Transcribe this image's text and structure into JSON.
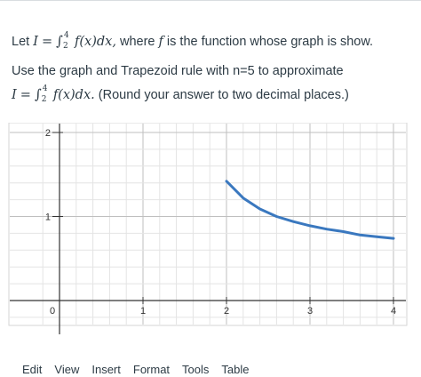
{
  "question": {
    "line1_prefix": "Let",
    "line1_var": "I",
    "line1_eq": "=",
    "integral_sign": "∫",
    "upper_limit": "4",
    "lower_limit": "2",
    "integrand": "f(x)dx,",
    "line1_text": "where",
    "line1_f": "f",
    "line1_suffix": "is the function whose graph is show.",
    "line2": "Use the graph and Trapezoid rule with n=5 to approximate",
    "line3_var": "I",
    "line3_eq": "=",
    "line3_integrand": "f(x)dx.",
    "line3_suffix": "(Round your answer to two decimal places.)"
  },
  "chart_data": {
    "type": "line",
    "x_ticks": [
      "0",
      "1",
      "2",
      "3",
      "4"
    ],
    "y_ticks": [
      "1",
      "2"
    ],
    "xlim": [
      -0.1,
      4.15
    ],
    "ylim": [
      -0.05,
      2.2
    ],
    "grid": true,
    "series": [
      {
        "x": [
          2.0,
          2.2,
          2.4,
          2.6,
          2.8,
          3.0,
          3.2,
          3.4,
          3.6,
          3.8,
          4.0
        ],
        "y": [
          1.42,
          1.22,
          1.09,
          1.0,
          0.94,
          0.89,
          0.85,
          0.82,
          0.78,
          0.76,
          0.74
        ],
        "color": "#3a78bf"
      }
    ]
  },
  "menubar": {
    "items": [
      "Edit",
      "View",
      "Insert",
      "Format",
      "Tools",
      "Table"
    ]
  }
}
